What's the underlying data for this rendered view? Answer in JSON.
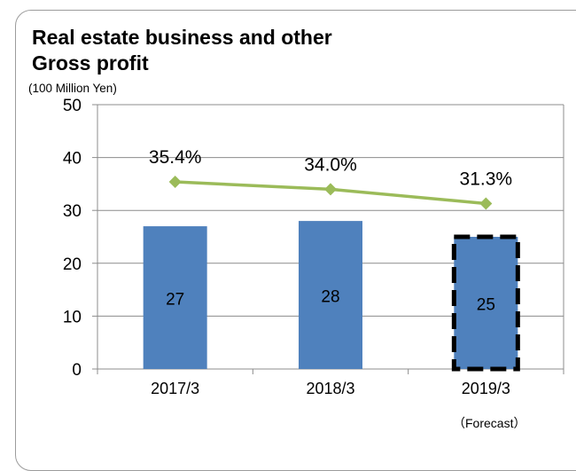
{
  "chart_data": {
    "type": "bar",
    "title": "Real estate business and other\nGross profit",
    "unit_label": "(100 Million Yen)",
    "categories": [
      "2017/3",
      "2018/3",
      "2019/3"
    ],
    "series": [
      {
        "type": "bar",
        "values": [
          27,
          28,
          25
        ],
        "color": "#4f81bd"
      },
      {
        "type": "line",
        "values": [
          35.4,
          34.0,
          31.3
        ],
        "labels": [
          "35.4%",
          "34.0%",
          "31.3%"
        ],
        "color": "#9bbb59"
      }
    ],
    "ylim": [
      0,
      50
    ],
    "yticks": [
      0,
      10,
      20,
      30,
      40,
      50
    ],
    "grid": true,
    "highlighted_category": "2019/3",
    "annotation": "（Forecast）"
  }
}
